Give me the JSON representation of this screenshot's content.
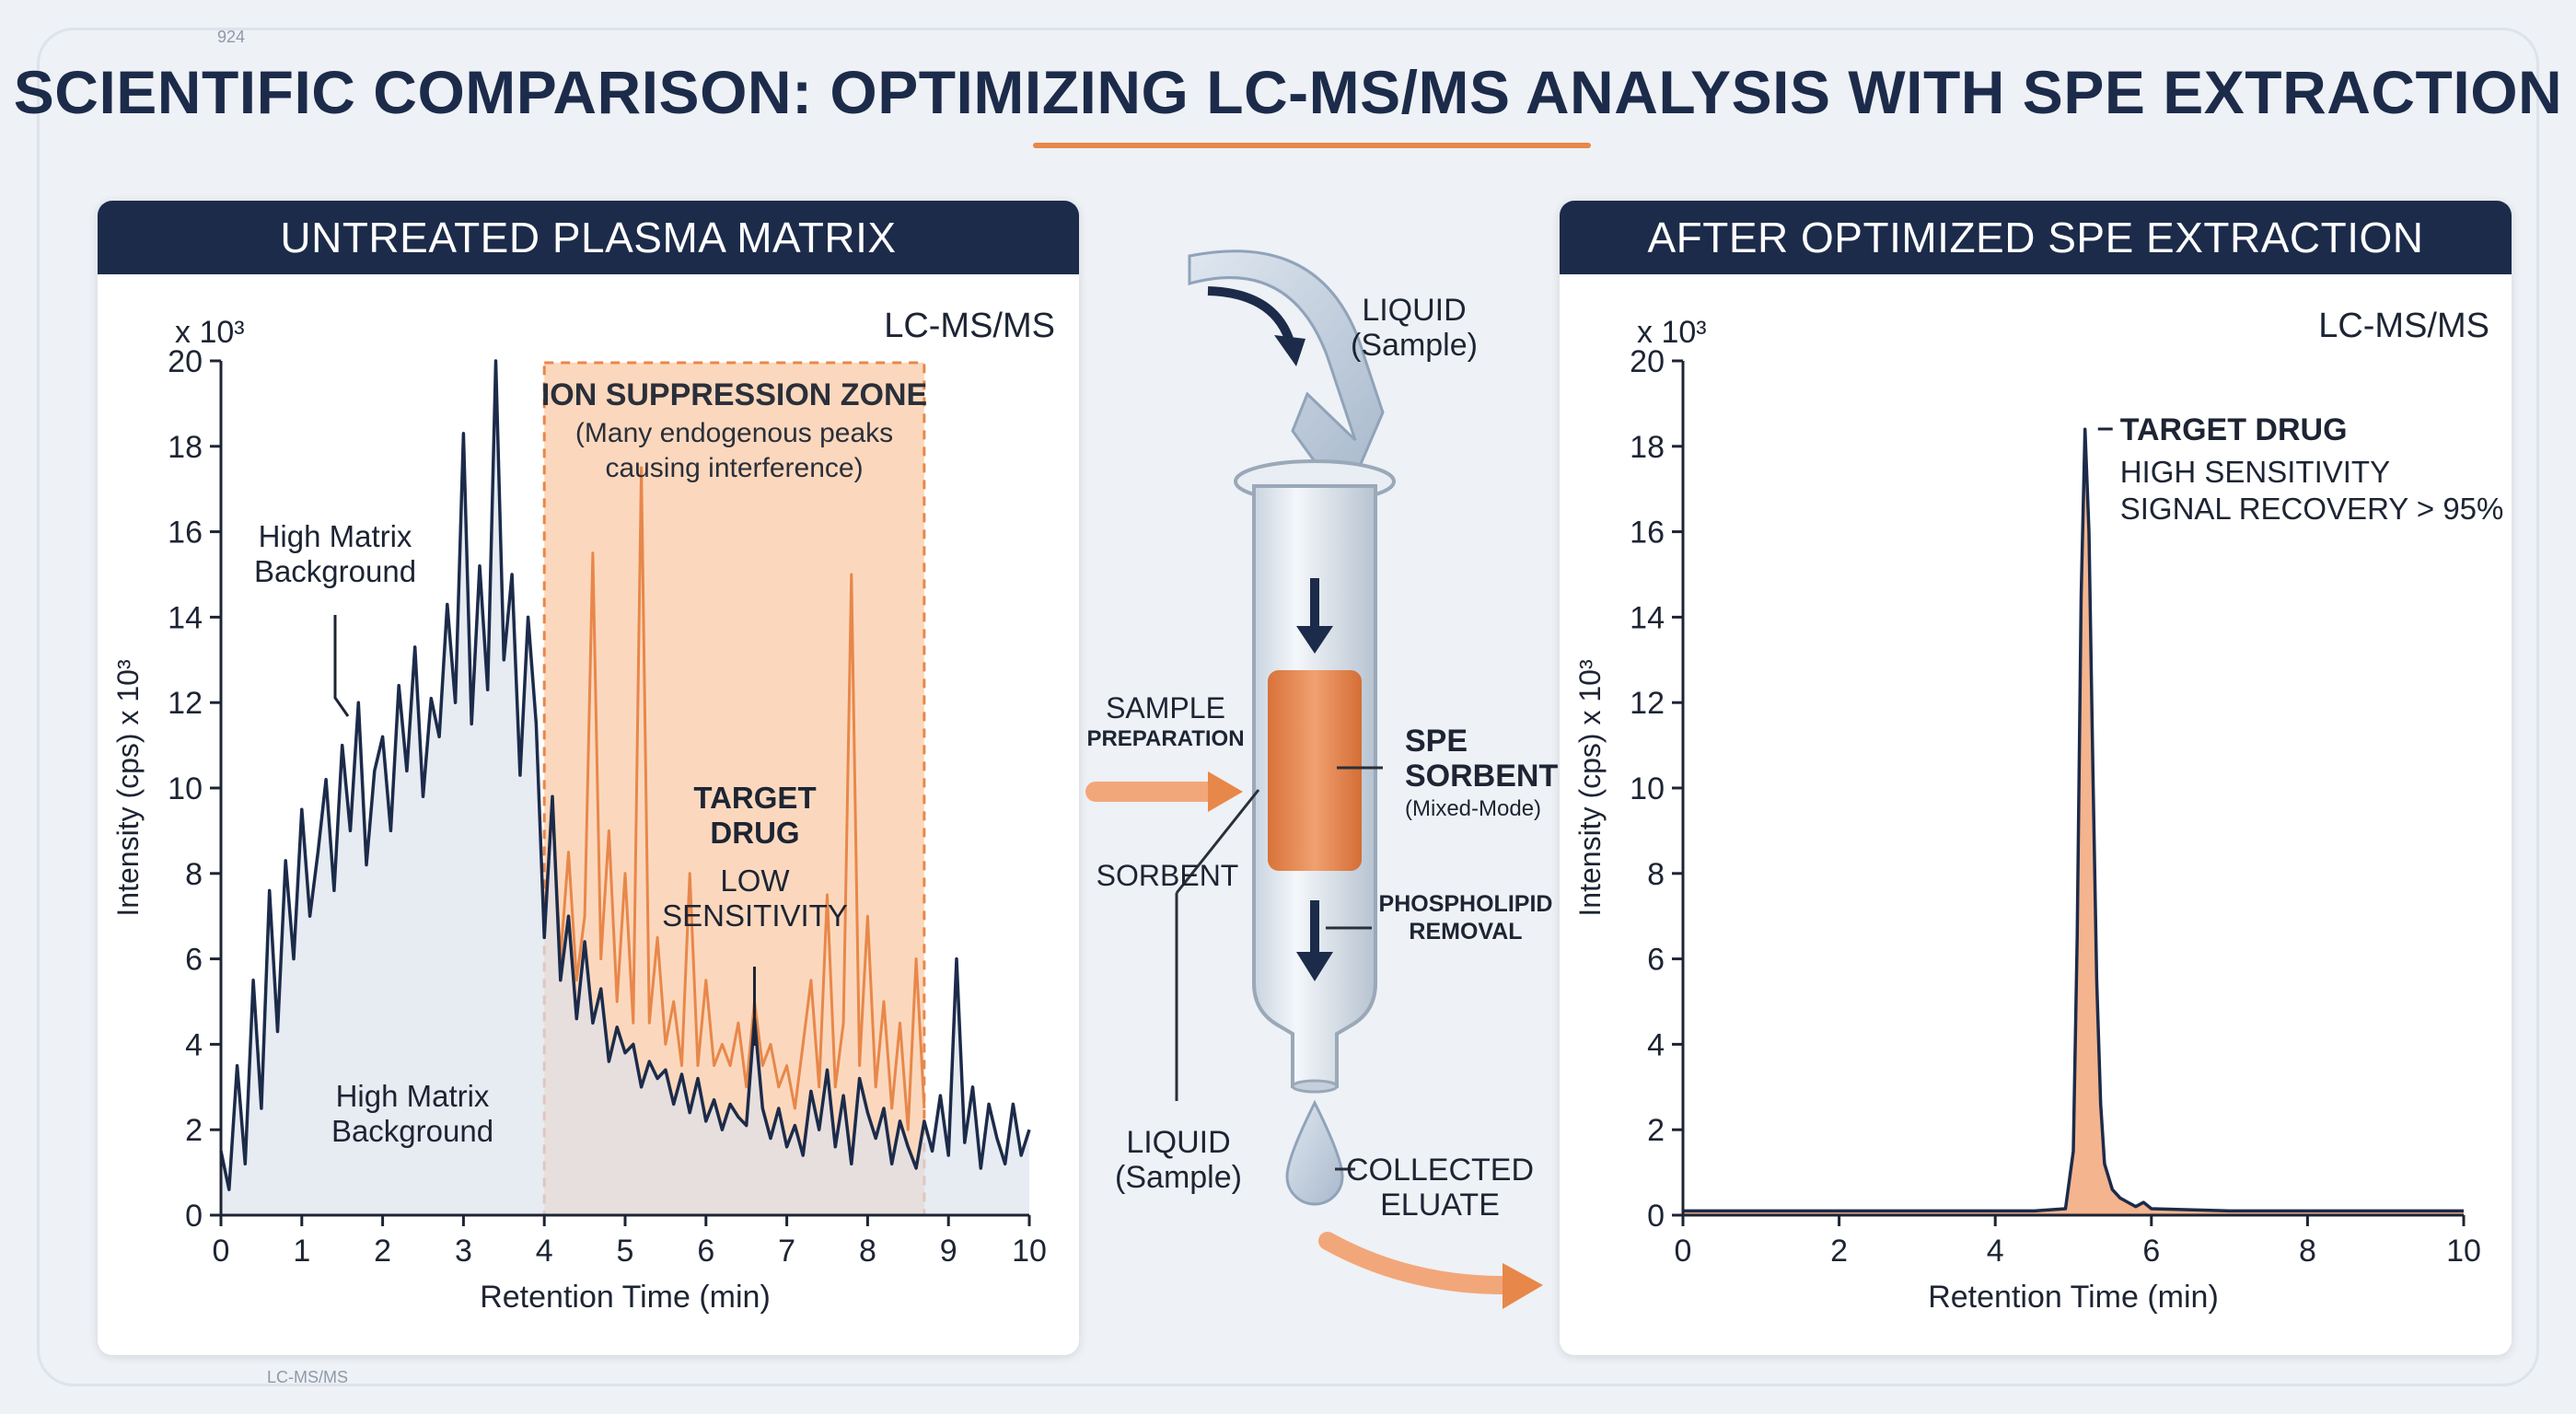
{
  "title": "SCIENTIFIC COMPARISON: OPTIMIZING LC-MS/MS ANALYSIS WITH SPE EXTRACTION",
  "footer_label": "LC-MS/MS",
  "colors": {
    "navy": "#1c2b4a",
    "orange": "#e8874a",
    "zone_fill": "#f9cba7",
    "matrix_fill": "#dde3ec"
  },
  "chart_data": [
    {
      "type": "line",
      "panel_title": "UNTREATED PLASMA MATRIX",
      "instrument_label": "LC-MS/MS",
      "multiplier_label": "x 10³",
      "xlabel": "Retention Time (min)",
      "ylabel": "Intensity (cps) x 10³",
      "xlim": [
        0,
        10
      ],
      "ylim": [
        0,
        20
      ],
      "x_ticks": [
        "0",
        "1",
        "2",
        "3",
        "4",
        "5",
        "6",
        "7",
        "8",
        "9",
        "10"
      ],
      "y_ticks": [
        "0",
        "2",
        "4",
        "6",
        "8",
        "10",
        "12",
        "14",
        "16",
        "18",
        "20"
      ],
      "grid": false,
      "shaded_region": {
        "x": [
          4,
          8.7
        ],
        "title": "ION SUPPRESSION ZONE",
        "subtitle": "(Many endogenous peaks causing interference)"
      },
      "annotations": {
        "matrix_upper": "High Matrix Background",
        "matrix_lower": "High Matrix Background",
        "target_title": "TARGET DRUG",
        "target_note": "LOW SENSITIVITY"
      },
      "series": [
        {
          "x": [
            0,
            0.1,
            0.2,
            0.3,
            0.4,
            0.5,
            0.6,
            0.7,
            0.8,
            0.9,
            1,
            1.1,
            1.2,
            1.3,
            1.4,
            1.5,
            1.6,
            1.7,
            1.8,
            1.9,
            2,
            2.1,
            2.2,
            2.3,
            2.4,
            2.5,
            2.6,
            2.7,
            2.8,
            2.9,
            3,
            3.1,
            3.2,
            3.3,
            3.4,
            3.5,
            3.6,
            3.7,
            3.8,
            3.9,
            4,
            4.1,
            4.2,
            4.3,
            4.4,
            4.5,
            4.6,
            4.7,
            4.8,
            4.9,
            5,
            5.1,
            5.2,
            5.3,
            5.4,
            5.5,
            5.6,
            5.7,
            5.8,
            5.9,
            6,
            6.1,
            6.2,
            6.3,
            6.4,
            6.5,
            6.6,
            6.7,
            6.8,
            6.9,
            7,
            7.1,
            7.2,
            7.3,
            7.4,
            7.5,
            7.6,
            7.7,
            7.8,
            7.9,
            8,
            8.1,
            8.2,
            8.3,
            8.4,
            8.5,
            8.6,
            8.7,
            8.8,
            8.9,
            9,
            9.1,
            9.2,
            9.3,
            9.4,
            9.5,
            9.6,
            9.7,
            9.8,
            9.9,
            10
          ],
          "values": [
            1.5,
            0.6,
            3.5,
            1.2,
            5.5,
            2.5,
            7.6,
            4.3,
            8.3,
            6.0,
            9.5,
            7.0,
            8.5,
            10.2,
            7.6,
            11.0,
            9.0,
            12.0,
            8.2,
            10.4,
            11.2,
            9.0,
            12.4,
            10.4,
            13.3,
            9.8,
            12.1,
            11.2,
            14.3,
            12.0,
            18.3,
            11.5,
            15.2,
            12.3,
            20.0,
            13.0,
            15.0,
            10.3,
            14.0,
            11.5,
            6.5,
            9.8,
            5.5,
            7.0,
            4.6,
            6.4,
            4.5,
            5.3,
            3.6,
            4.4,
            3.8,
            4.0,
            3.0,
            3.6,
            3.2,
            3.4,
            2.6,
            3.3,
            2.4,
            3.2,
            2.2,
            2.7,
            2.0,
            2.6,
            2.3,
            2.1,
            4.6,
            2.5,
            1.8,
            2.5,
            1.6,
            2.1,
            1.4,
            2.9,
            2.0,
            3.4,
            1.6,
            2.8,
            1.2,
            3.2,
            2.4,
            1.8,
            2.5,
            1.2,
            2.2,
            1.6,
            1.1,
            2.2,
            1.5,
            2.8,
            1.4,
            6.0,
            1.7,
            3.0,
            1.1,
            2.6,
            1.8,
            1.2,
            2.6,
            1.4,
            2.0
          ]
        },
        {
          "x": [
            4,
            4.1,
            4.2,
            4.3,
            4.4,
            4.5,
            4.6,
            4.7,
            4.8,
            4.9,
            5,
            5.1,
            5.2,
            5.3,
            5.4,
            5.5,
            5.6,
            5.7,
            5.8,
            5.9,
            6,
            6.1,
            6.2,
            6.3,
            6.4,
            6.5,
            6.6,
            6.7,
            6.8,
            6.9,
            7,
            7.1,
            7.2,
            7.3,
            7.4,
            7.5,
            7.6,
            7.7,
            7.8,
            7.9,
            8,
            8.1,
            8.2,
            8.3,
            8.4,
            8.5,
            8.6,
            8.7
          ],
          "values": [
            7.0,
            9.5,
            6.0,
            8.5,
            5.5,
            7.0,
            15.5,
            6.0,
            9.0,
            5.0,
            8.0,
            4.5,
            17.5,
            4.5,
            6.5,
            4.0,
            5.0,
            3.5,
            8.0,
            3.5,
            5.5,
            3.5,
            4.0,
            3.5,
            4.5,
            3.0,
            5.0,
            3.5,
            4.0,
            3.0,
            3.5,
            2.5,
            4.0,
            5.5,
            3.0,
            7.5,
            3.0,
            4.5,
            15.0,
            3.5,
            7.0,
            3.0,
            5.0,
            2.5,
            4.5,
            2.0,
            6.0,
            2.5
          ]
        }
      ]
    },
    {
      "type": "line",
      "panel_title": "AFTER OPTIMIZED SPE EXTRACTION",
      "instrument_label": "LC-MS/MS",
      "multiplier_label": "x 10³",
      "xlabel": "Retention Time (min)",
      "ylabel": "Intensity (cps) x 10³",
      "xlim": [
        0,
        10
      ],
      "ylim": [
        0,
        20
      ],
      "x_ticks": [
        "0",
        "2",
        "4",
        "6",
        "8",
        "10"
      ],
      "y_ticks": [
        "0",
        "2",
        "4",
        "6",
        "8",
        "10",
        "12",
        "14",
        "16",
        "18",
        "20"
      ],
      "grid": false,
      "annotations": {
        "target_title": "TARGET DRUG",
        "target_note_1": "HIGH SENSITIVITY",
        "target_note_2": "SIGNAL RECOVERY > 95%"
      },
      "series": [
        {
          "x": [
            0,
            4.5,
            4.9,
            5.0,
            5.05,
            5.1,
            5.15,
            5.2,
            5.25,
            5.3,
            5.35,
            5.4,
            5.5,
            5.6,
            5.7,
            5.8,
            5.9,
            6.0,
            7,
            8,
            10
          ],
          "values": [
            0.1,
            0.1,
            0.15,
            1.5,
            6.5,
            14.5,
            18.4,
            16.0,
            10.5,
            5.5,
            2.6,
            1.2,
            0.6,
            0.4,
            0.3,
            0.2,
            0.3,
            0.15,
            0.1,
            0.1,
            0.1
          ]
        }
      ]
    }
  ],
  "diagram": {
    "liquid_in": "LIQUID",
    "liquid_in_sub": "(Sample)",
    "sample_prep_1": "SAMPLE",
    "sample_prep_2": "PREPARATION",
    "sorbent_label": "SORBENT",
    "spe_1": "SPE",
    "spe_2": "SORBENT",
    "spe_3": "(Mixed-Mode)",
    "phospho_1": "PHOSPHOLIPID",
    "phospho_2": "REMOVAL",
    "liquid_out": "LIQUID",
    "liquid_out_sub": "(Sample)",
    "collected_1": "COLLECTED",
    "collected_2": "ELUATE"
  }
}
